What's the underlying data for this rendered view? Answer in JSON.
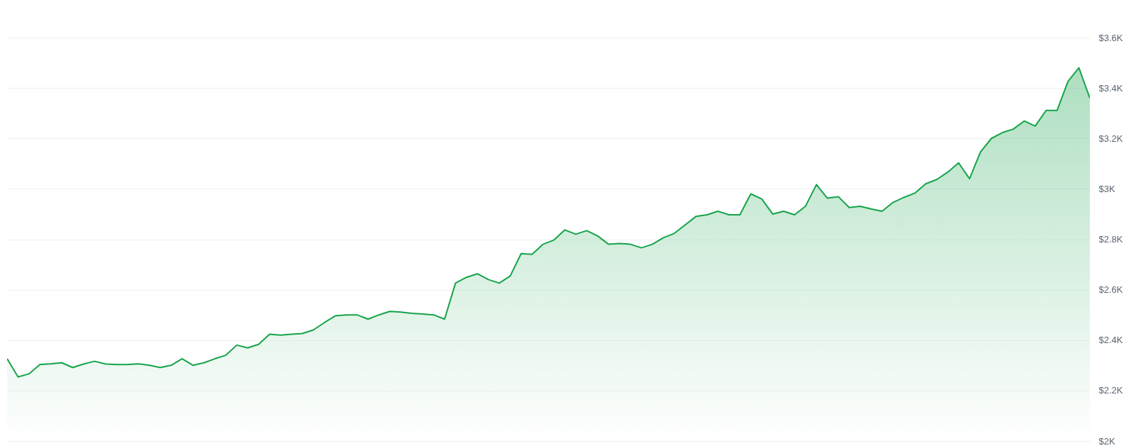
{
  "chart_data": {
    "type": "area",
    "categories": [
      null,
      null,
      null,
      null,
      null,
      null,
      null,
      null,
      null,
      null,
      null,
      null,
      null,
      null,
      null,
      null,
      null,
      null,
      null,
      null,
      null,
      null,
      null,
      null,
      null,
      null,
      null,
      null,
      null,
      null,
      null,
      null,
      null,
      null,
      null,
      null,
      null,
      null,
      null,
      null,
      null,
      null,
      null,
      null,
      null,
      null,
      null,
      null,
      null,
      null,
      null,
      null,
      null,
      null,
      null,
      null,
      null,
      null,
      null,
      null,
      null,
      null,
      null,
      null,
      null,
      null,
      null,
      null,
      null,
      null,
      null,
      null,
      null,
      null,
      null,
      null,
      null,
      null,
      null,
      null,
      null,
      null,
      null,
      null,
      null,
      null,
      null,
      null,
      null,
      null,
      null,
      null,
      null,
      null,
      null,
      null,
      null,
      null,
      null,
      null
    ],
    "series": [
      {
        "color": "#16a34a",
        "values": [
          2326,
          2254,
          2266,
          2303,
          2306,
          2310,
          2291,
          2305,
          2316,
          2305,
          2303,
          2303,
          2306,
          2300,
          2291,
          2300,
          2326,
          2300,
          2310,
          2326,
          2340,
          2380,
          2369,
          2383,
          2423,
          2420,
          2423,
          2426,
          2440,
          2469,
          2496,
          2500,
          2500,
          2483,
          2500,
          2514,
          2511,
          2506,
          2503,
          2500,
          2483,
          2626,
          2649,
          2663,
          2640,
          2626,
          2654,
          2743,
          2740,
          2780,
          2797,
          2837,
          2820,
          2834,
          2813,
          2780,
          2783,
          2780,
          2766,
          2780,
          2806,
          2823,
          2857,
          2891,
          2897,
          2911,
          2897,
          2897,
          2980,
          2960,
          2900,
          2911,
          2897,
          2931,
          3017,
          2963,
          2969,
          2926,
          2931,
          2920,
          2911,
          2946,
          2966,
          2983,
          3020,
          3037,
          3066,
          3103,
          3040,
          3146,
          3200,
          3223,
          3237,
          3269,
          3249,
          3311,
          3311,
          3426,
          3480,
          3360
        ]
      }
    ],
    "ylim": [
      2000,
      3600
    ],
    "yticks": [
      {
        "value": 2000,
        "label": "$2K"
      },
      {
        "value": 2200,
        "label": "$2.2K"
      },
      {
        "value": 2400,
        "label": "$2.4K"
      },
      {
        "value": 2600,
        "label": "$2.6K"
      },
      {
        "value": 2800,
        "label": "$2.8K"
      },
      {
        "value": 3000,
        "label": "$3K"
      },
      {
        "value": 3200,
        "label": "$3.2K"
      },
      {
        "value": 3400,
        "label": "$3.4K"
      },
      {
        "value": 3600,
        "label": "$3.6K"
      }
    ],
    "grid": "y",
    "tick_labels": "y"
  }
}
